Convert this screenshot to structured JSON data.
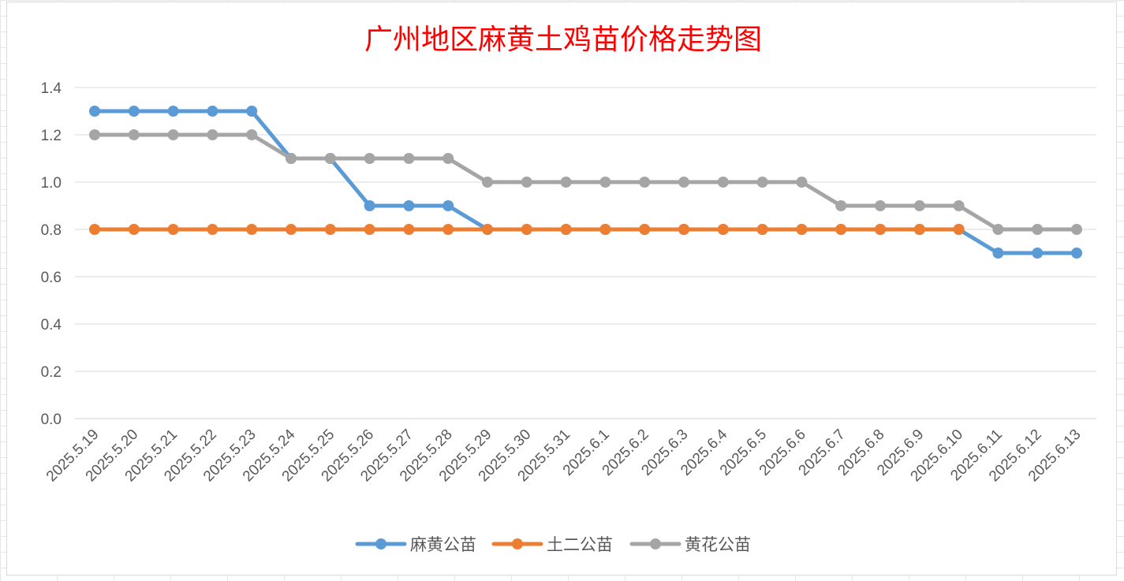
{
  "chart_data": {
    "type": "line",
    "title": "广州地区麻黄土鸡苗价格走势图",
    "xlabel": "",
    "ylabel": "",
    "ylim": [
      0,
      1.4
    ],
    "yticks": [
      "0.0",
      "0.2",
      "0.4",
      "0.6",
      "0.8",
      "1.0",
      "1.2",
      "1.4"
    ],
    "ytick_values": [
      0,
      0.2,
      0.4,
      0.6,
      0.8,
      1.0,
      1.2,
      1.4
    ],
    "grid": true,
    "legend_position": "bottom",
    "categories": [
      "2025.5.19",
      "2025.5.20",
      "2025.5.21",
      "2025.5.22",
      "2025.5.23",
      "2025.5.24",
      "2025.5.25",
      "2025.5.26",
      "2025.5.27",
      "2025.5.28",
      "2025.5.29",
      "2025.5.30",
      "2025.5.31",
      "2025.6.1",
      "2025.6.2",
      "2025.6.3",
      "2025.6.4",
      "2025.6.5",
      "2025.6.6",
      "2025.6.7",
      "2025.6.8",
      "2025.6.9",
      "2025.6.10",
      "2025.6.11",
      "2025.6.12",
      "2025.6.13"
    ],
    "series": [
      {
        "name": "麻黄公苗",
        "color": "#5b9bd5",
        "values": [
          1.3,
          1.3,
          1.3,
          1.3,
          1.3,
          1.1,
          1.1,
          0.9,
          0.9,
          0.9,
          0.8,
          0.8,
          0.8,
          0.8,
          0.8,
          0.8,
          0.8,
          0.8,
          0.8,
          0.8,
          0.8,
          0.8,
          0.8,
          0.7,
          0.7,
          0.7
        ]
      },
      {
        "name": "土二公苗",
        "color": "#ed7d31",
        "values": [
          0.8,
          0.8,
          0.8,
          0.8,
          0.8,
          0.8,
          0.8,
          0.8,
          0.8,
          0.8,
          0.8,
          0.8,
          0.8,
          0.8,
          0.8,
          0.8,
          0.8,
          0.8,
          0.8,
          0.8,
          0.8,
          0.8,
          0.8,
          null,
          null,
          null
        ]
      },
      {
        "name": "黄花公苗",
        "color": "#a5a5a5",
        "values": [
          1.2,
          1.2,
          1.2,
          1.2,
          1.2,
          1.1,
          1.1,
          1.1,
          1.1,
          1.1,
          1.0,
          1.0,
          1.0,
          1.0,
          1.0,
          1.0,
          1.0,
          1.0,
          1.0,
          0.9,
          0.9,
          0.9,
          0.9,
          0.8,
          0.8,
          0.8
        ]
      }
    ]
  }
}
